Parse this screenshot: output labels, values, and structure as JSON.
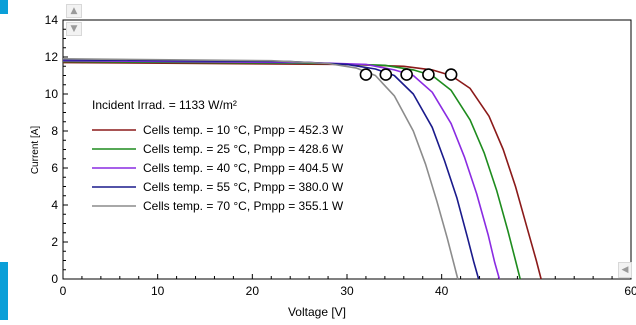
{
  "chart_data": {
    "type": "line",
    "xlabel": "Voltage [V]",
    "ylabel": "Current [A]",
    "xlim": [
      0,
      60
    ],
    "ylim": [
      0,
      14
    ],
    "x_ticks": [
      0,
      10,
      20,
      30,
      40,
      60
    ],
    "x_tick_labels": [
      "0",
      "10",
      "20",
      "30",
      "40",
      "60"
    ],
    "y_ticks": [
      0,
      2,
      4,
      6,
      8,
      10,
      12,
      14
    ],
    "y_tick_labels": [
      "0",
      "2",
      "4",
      "6",
      "8",
      "10",
      "12",
      "14"
    ],
    "grid": false,
    "legend_position": "left",
    "legend_header": "Incident Irrad. = 1133 W/m²",
    "series": [
      {
        "name": "Cells temp. = 10 °C,  Pmpp = 452.3 W",
        "color": "#8b1a1a",
        "x": [
          0,
          30,
          36,
          39,
          41,
          43,
          45,
          46.5,
          47.8,
          49,
          50,
          50.5
        ],
        "y": [
          11.7,
          11.6,
          11.5,
          11.3,
          11.0,
          10.3,
          8.8,
          7.0,
          5.0,
          2.8,
          1.0,
          0
        ]
      },
      {
        "name": "Cells temp. = 25 °C,  Pmpp = 428.6 W",
        "color": "#1e8c1e",
        "x": [
          0,
          28,
          34,
          37,
          39,
          41,
          43,
          44.5,
          45.8,
          47,
          47.8,
          48.3
        ],
        "y": [
          11.75,
          11.65,
          11.55,
          11.3,
          11.0,
          10.2,
          8.6,
          6.8,
          4.8,
          2.6,
          1.0,
          0
        ]
      },
      {
        "name": "Cells temp. = 40 °C,  Pmpp = 404.5 W",
        "color": "#8a2be2",
        "x": [
          0,
          26,
          32,
          35,
          37,
          39,
          41,
          42.4,
          43.7,
          44.9,
          45.6,
          46.1
        ],
        "y": [
          11.8,
          11.7,
          11.6,
          11.3,
          11.0,
          10.1,
          8.4,
          6.6,
          4.6,
          2.4,
          0.9,
          0
        ]
      },
      {
        "name": "Cells temp. = 55 °C,  Pmpp = 380.0 W",
        "color": "#1a1a8b",
        "x": [
          0,
          24,
          30,
          33,
          35,
          37,
          39,
          40.3,
          41.6,
          42.7,
          43.4,
          43.9
        ],
        "y": [
          11.85,
          11.75,
          11.6,
          11.35,
          11.0,
          10.0,
          8.2,
          6.4,
          4.4,
          2.3,
          0.9,
          0
        ]
      },
      {
        "name": "Cells temp. = 70 °C,  Pmpp = 355.1 W",
        "color": "#8c8c8c",
        "x": [
          0,
          22,
          28,
          31,
          33,
          35,
          37,
          38.3,
          39.5,
          40.6,
          41.3,
          41.7
        ],
        "y": [
          11.9,
          11.8,
          11.65,
          11.4,
          11.0,
          9.9,
          8.0,
          6.2,
          4.2,
          2.2,
          0.8,
          0
        ]
      }
    ],
    "mpp_markers": {
      "x": [
        41.0,
        38.6,
        36.3,
        34.1,
        32.0
      ],
      "y": [
        11.05,
        11.05,
        11.05,
        11.05,
        11.05
      ]
    }
  }
}
